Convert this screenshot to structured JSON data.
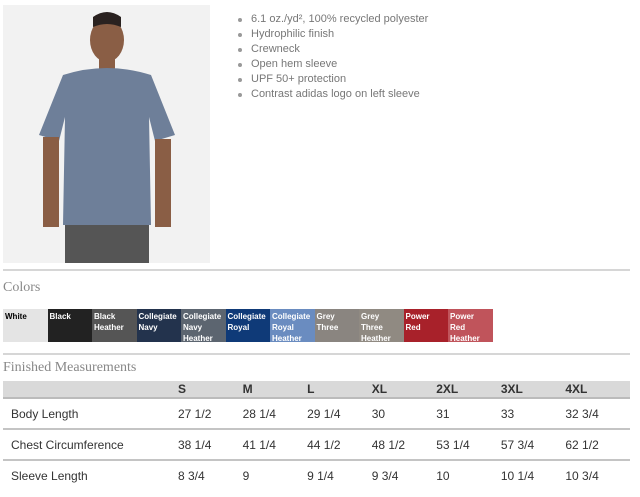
{
  "features": [
    "6.1 oz./yd², 100% recycled polyester",
    "Hydrophilic finish",
    "Crewneck",
    "Open hem sleeve",
    "UPF 50+ protection",
    "Contrast adidas logo on left sleeve"
  ],
  "colors_title": "Colors",
  "colors": [
    {
      "name": [
        "White"
      ],
      "hex": "#e4e4e4",
      "text": "#000"
    },
    {
      "name": [
        "Black"
      ],
      "hex": "#222222",
      "text": "#fff"
    },
    {
      "name": [
        "Black",
        "Heather"
      ],
      "hex": "#555555",
      "text": "#fff"
    },
    {
      "name": [
        "Collegiate",
        "Navy"
      ],
      "hex": "#23334d",
      "text": "#fff"
    },
    {
      "name": [
        "Collegiate",
        "Navy",
        "Heather"
      ],
      "hex": "#5c6570",
      "text": "#fff"
    },
    {
      "name": [
        "Collegiate",
        "Royal"
      ],
      "hex": "#0f3a78",
      "text": "#fff"
    },
    {
      "name": [
        "Collegiate",
        "Royal",
        "Heather"
      ],
      "hex": "#6a8cc0",
      "text": "#fff"
    },
    {
      "name": [
        "Grey",
        "Three"
      ],
      "hex": "#8a8580",
      "text": "#fff"
    },
    {
      "name": [
        "Grey",
        "Three",
        "Heather"
      ],
      "hex": "#908a82",
      "text": "#fff"
    },
    {
      "name": [
        "Power",
        "Red"
      ],
      "hex": "#a8212a",
      "text": "#fff"
    },
    {
      "name": [
        "Power",
        "Red",
        "Heather"
      ],
      "hex": "#c0545b",
      "text": "#fff"
    }
  ],
  "measurements_title": "Finished Measurements",
  "sizes": [
    "S",
    "M",
    "L",
    "XL",
    "2XL",
    "3XL",
    "4XL"
  ],
  "rows": [
    {
      "label": "Body Length",
      "values": [
        "27 1/2",
        "28 1/4",
        "29 1/4",
        "30",
        "31",
        "33",
        "32 3/4"
      ]
    },
    {
      "label": "Chest Circumference",
      "values": [
        "38 1/4",
        "41 1/4",
        "44 1/2",
        "48 1/2",
        "53 1/4",
        "57 3/4",
        "62 1/2"
      ]
    },
    {
      "label": "Sleeve Length",
      "values": [
        "8 3/4",
        "9",
        "9 1/4",
        "9 3/4",
        "10",
        "10 1/4",
        "10 3/4"
      ]
    }
  ]
}
